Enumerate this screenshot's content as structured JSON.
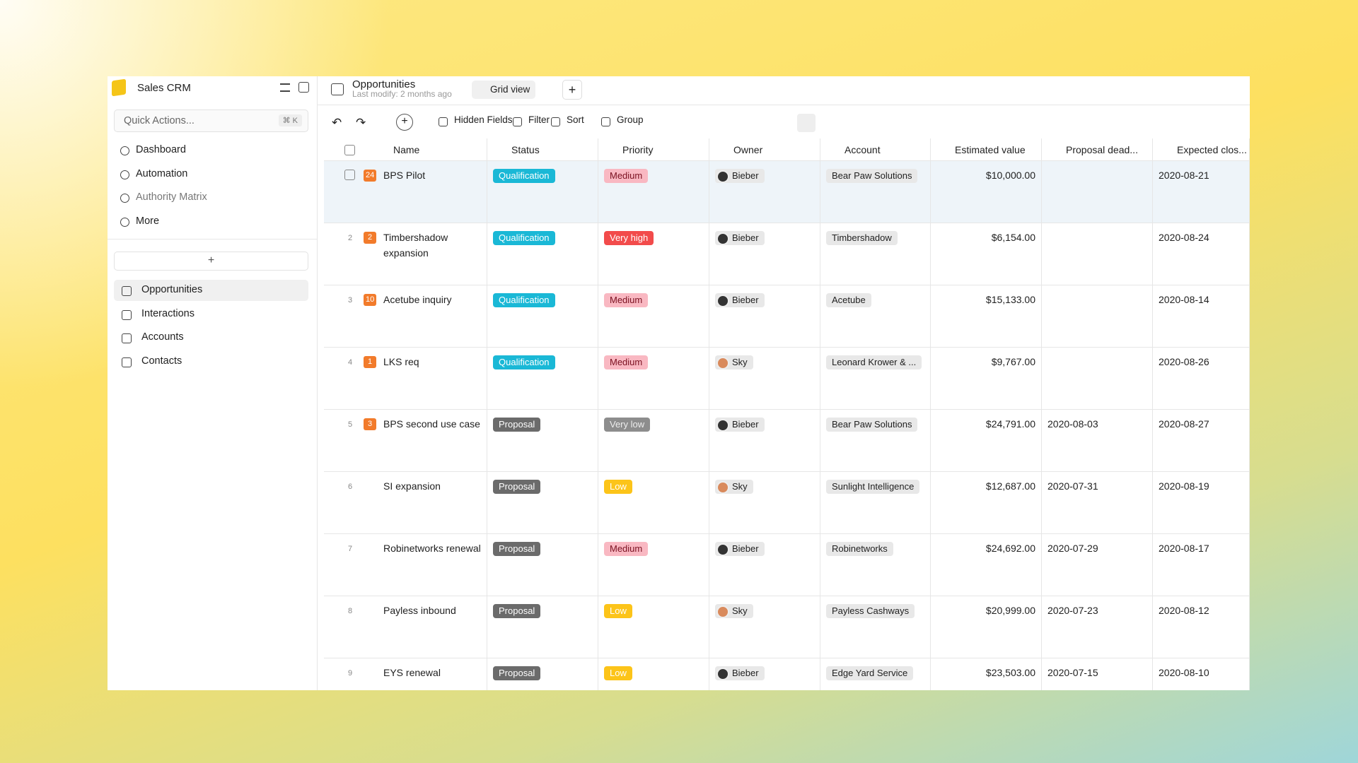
{
  "sidebar": {
    "title": "Sales CRM",
    "quick_actions": "Quick Actions...",
    "shortcut": "⌘ K",
    "nav": [
      "Dashboard",
      "Automation",
      "Authority Matrix",
      "More"
    ],
    "tables": [
      "Opportunities",
      "Interactions",
      "Accounts",
      "Contacts"
    ]
  },
  "header": {
    "title": "Opportunities",
    "subtitle": "Last modify: 2 months ago",
    "view": "Grid view"
  },
  "toolbar": [
    "Hidden Fields",
    "Filter",
    "Sort",
    "Group"
  ],
  "table": {
    "columns": [
      "Name",
      "Status",
      "Priority",
      "Owner",
      "Account",
      "Estimated value",
      "Proposal dead...",
      "Expected clos..."
    ],
    "rows": [
      {
        "badge": "24",
        "name": "BPS Pilot",
        "status": "Qualification",
        "priority": "Medium",
        "owner": "Bieber",
        "account": "Bear Paw Solutions",
        "value": "$10,000.00",
        "proposal": "",
        "close": "2020-08-21"
      },
      {
        "num": "2",
        "badge": "2",
        "name": "Timbershadow expansion",
        "status": "Qualification",
        "priority": "Very high",
        "owner": "Bieber",
        "account": "Timbershadow",
        "value": "$6,154.00",
        "proposal": "",
        "close": "2020-08-24"
      },
      {
        "num": "3",
        "badge": "10",
        "name": "Acetube inquiry",
        "status": "Qualification",
        "priority": "Medium",
        "owner": "Bieber",
        "account": "Acetube",
        "value": "$15,133.00",
        "proposal": "",
        "close": "2020-08-14"
      },
      {
        "num": "4",
        "badge": "1",
        "name": "LKS req",
        "status": "Qualification",
        "priority": "Medium",
        "owner": "Sky",
        "account": "Leonard Krower & ...",
        "value": "$9,767.00",
        "proposal": "",
        "close": "2020-08-26"
      },
      {
        "num": "5",
        "badge": "3",
        "name": "BPS second use case",
        "status": "Proposal",
        "priority": "Very low",
        "owner": "Bieber",
        "account": "Bear Paw Solutions",
        "value": "$24,791.00",
        "proposal": "2020-08-03",
        "close": "2020-08-27"
      },
      {
        "num": "6",
        "name": "SI expansion",
        "status": "Proposal",
        "priority": "Low",
        "owner": "Sky",
        "account": "Sunlight Intelligence",
        "value": "$12,687.00",
        "proposal": "2020-07-31",
        "close": "2020-08-19"
      },
      {
        "num": "7",
        "name": "Robinetworks renewal",
        "status": "Proposal",
        "priority": "Medium",
        "owner": "Bieber",
        "account": "Robinetworks",
        "value": "$24,692.00",
        "proposal": "2020-07-29",
        "close": "2020-08-17"
      },
      {
        "num": "8",
        "name": "Payless inbound",
        "status": "Proposal",
        "priority": "Low",
        "owner": "Sky",
        "account": "Payless Cashways",
        "value": "$20,999.00",
        "proposal": "2020-07-23",
        "close": "2020-08-12"
      },
      {
        "num": "9",
        "name": "EYS renewal",
        "status": "Proposal",
        "priority": "Low",
        "owner": "Bieber",
        "account": "Edge Yard Service",
        "value": "$23,503.00",
        "proposal": "2020-07-15",
        "close": "2020-08-10"
      }
    ]
  }
}
